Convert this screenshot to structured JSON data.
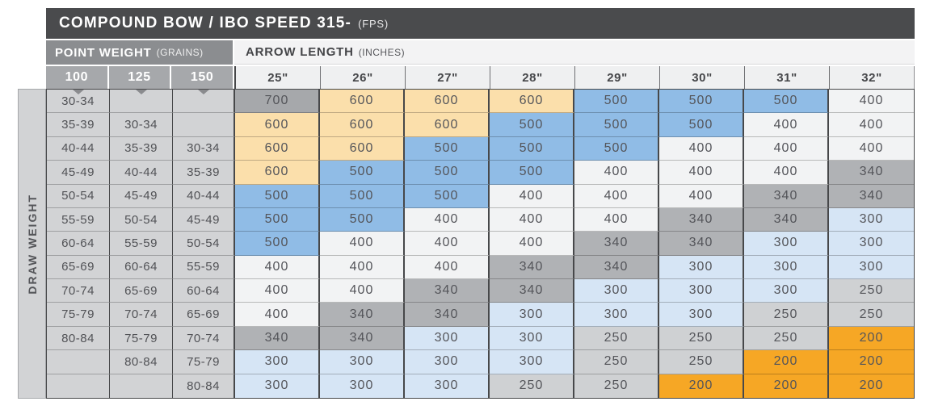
{
  "header": {
    "title": "COMPOUND BOW / IBO SPEED 315-",
    "title_unit": "(FPS)",
    "point_weight_label": "POINT WEIGHT",
    "point_weight_unit": "(GRAINS)",
    "arrow_length_label": "ARROW LENGTH",
    "arrow_length_unit": "(INCHES)"
  },
  "side": {
    "draw_weight_label": "DRAW WEIGHT"
  },
  "chart_data": {
    "type": "table",
    "title": "COMPOUND BOW / IBO SPEED 315- (FPS)",
    "point_weight_columns": [
      "100",
      "125",
      "150"
    ],
    "arrow_length_columns": [
      "25\"",
      "26\"",
      "27\"",
      "28\"",
      "29\"",
      "30\"",
      "31\"",
      "32\""
    ],
    "row_axis_label": "DRAW WEIGHT",
    "rows": [
      {
        "point_weights": [
          "30-34",
          "",
          ""
        ],
        "spines": [
          700,
          600,
          600,
          600,
          500,
          500,
          500,
          400
        ]
      },
      {
        "point_weights": [
          "35-39",
          "30-34",
          ""
        ],
        "spines": [
          600,
          600,
          600,
          500,
          500,
          500,
          400,
          400
        ]
      },
      {
        "point_weights": [
          "40-44",
          "35-39",
          "30-34"
        ],
        "spines": [
          600,
          600,
          500,
          500,
          500,
          400,
          400,
          400
        ]
      },
      {
        "point_weights": [
          "45-49",
          "40-44",
          "35-39"
        ],
        "spines": [
          600,
          500,
          500,
          500,
          400,
          400,
          400,
          340
        ]
      },
      {
        "point_weights": [
          "50-54",
          "45-49",
          "40-44"
        ],
        "spines": [
          500,
          500,
          500,
          400,
          400,
          400,
          340,
          340
        ]
      },
      {
        "point_weights": [
          "55-59",
          "50-54",
          "45-49"
        ],
        "spines": [
          500,
          500,
          400,
          400,
          400,
          340,
          340,
          300
        ]
      },
      {
        "point_weights": [
          "60-64",
          "55-59",
          "50-54"
        ],
        "spines": [
          500,
          400,
          400,
          400,
          340,
          340,
          300,
          300
        ]
      },
      {
        "point_weights": [
          "65-69",
          "60-64",
          "55-59"
        ],
        "spines": [
          400,
          400,
          400,
          340,
          340,
          300,
          300,
          300
        ]
      },
      {
        "point_weights": [
          "70-74",
          "65-69",
          "60-64"
        ],
        "spines": [
          400,
          400,
          340,
          340,
          300,
          300,
          300,
          250
        ]
      },
      {
        "point_weights": [
          "75-79",
          "70-74",
          "65-69"
        ],
        "spines": [
          400,
          340,
          340,
          300,
          300,
          300,
          250,
          250
        ]
      },
      {
        "point_weights": [
          "80-84",
          "75-79",
          "70-74"
        ],
        "spines": [
          340,
          340,
          300,
          300,
          250,
          250,
          250,
          200
        ]
      },
      {
        "point_weights": [
          "",
          "80-84",
          "75-79"
        ],
        "spines": [
          300,
          300,
          300,
          300,
          250,
          250,
          200,
          200
        ]
      },
      {
        "point_weights": [
          "",
          "",
          "80-84"
        ],
        "spines": [
          300,
          300,
          300,
          250,
          250,
          200,
          200,
          200
        ]
      }
    ]
  },
  "colors": {
    "titlebar": "#4a4b4d",
    "point_weight_band": "#8b8d90",
    "point_weight_header": "#a6a8ab",
    "arrow_length_band": "#f3f3f4",
    "arrow_length_header": "#eff0f1",
    "row_label_bg": "#d2d3d5",
    "spine": {
      "700": "#a6a8ab",
      "600": "#fbdfab",
      "500": "#90bce6",
      "400": "#f2f3f4",
      "340": "#b0b2b5",
      "300": "#d6e5f5",
      "250": "#cfd1d3",
      "200": "#f6a725"
    }
  }
}
